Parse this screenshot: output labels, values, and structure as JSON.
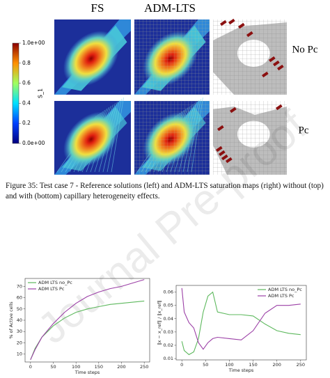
{
  "figure": {
    "column_headers": [
      "FS",
      "ADM-LTS"
    ],
    "row_labels": [
      "No Pc",
      "Pc"
    ],
    "colorbar": {
      "label": "S_1",
      "tick_labels": [
        "1.0e+00",
        "0.8",
        "0.6",
        "0.4",
        "0.2",
        "0.0e+00"
      ]
    }
  },
  "caption": "Figure 35: Test case 7 - Reference solutions (left) and ADM-LTS saturation maps (right) without (top) and with (bottom) capillary heterogeneity effects.",
  "watermark": "Journal Pre-proof",
  "charts": [
    {
      "type": "line",
      "x_label": "Time steps",
      "y_label": "% of Active cells",
      "xlim": [
        -12,
        262
      ],
      "ylim": [
        3,
        77
      ],
      "xticks": [
        0,
        50,
        100,
        150,
        200,
        250
      ],
      "yticks": [
        10,
        20,
        30,
        40,
        50,
        60,
        70
      ],
      "x": [
        0,
        10,
        25,
        50,
        75,
        100,
        125,
        150,
        175,
        200,
        225,
        250
      ],
      "series": [
        {
          "name": "ADM LTS no_Pc",
          "color": "#5cb85c",
          "values": [
            5,
            15,
            25,
            35,
            42,
            47,
            50,
            52,
            54,
            55,
            56,
            57
          ]
        },
        {
          "name": "ADM LTS Pc",
          "color": "#9b3fa6",
          "values": [
            5,
            14,
            25,
            37,
            47,
            55,
            61,
            65,
            68,
            70,
            73,
            76
          ]
        }
      ]
    },
    {
      "type": "line",
      "x_label": "Time steps",
      "y_label": "‖x − x_ref‖ / ‖x_ref‖",
      "xlim": [
        -12,
        262
      ],
      "ylim": [
        0.009,
        0.065
      ],
      "xticks": [
        0,
        50,
        100,
        150,
        200,
        250
      ],
      "yticks": [
        0.01,
        0.02,
        0.03,
        0.04,
        0.05,
        0.06
      ],
      "x": [
        0,
        5,
        15,
        25,
        35,
        45,
        55,
        65,
        75,
        100,
        125,
        150,
        175,
        200,
        225,
        250
      ],
      "series": [
        {
          "name": "ADM LTS no_Pc",
          "color": "#5cb85c",
          "values": [
            0.023,
            0.016,
            0.013,
            0.015,
            0.025,
            0.045,
            0.057,
            0.06,
            0.045,
            0.043,
            0.043,
            0.042,
            0.036,
            0.031,
            0.029,
            0.028
          ]
        },
        {
          "name": "ADM LTS Pc",
          "color": "#9b3fa6",
          "values": [
            0.063,
            0.045,
            0.037,
            0.033,
            0.022,
            0.017,
            0.022,
            0.025,
            0.026,
            0.025,
            0.024,
            0.031,
            0.044,
            0.05,
            0.05,
            0.051
          ]
        }
      ]
    }
  ]
}
